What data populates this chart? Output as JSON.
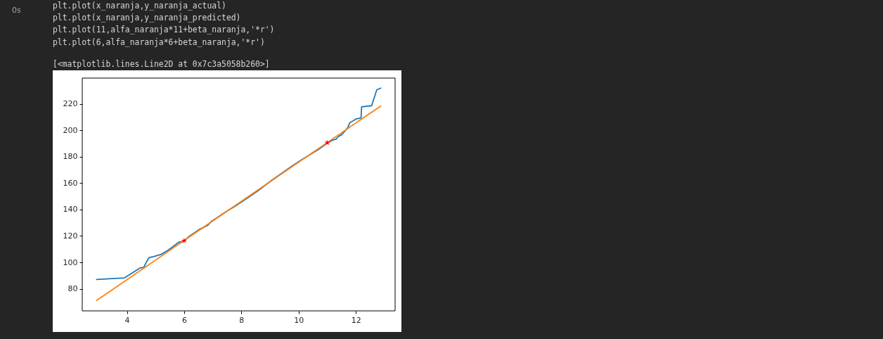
{
  "chart_data": {
    "type": "line",
    "annotations": [
      "0s",
      "plt.plot(x_naranja,y_naranja_actual)",
      "plt.plot(x_naranja,y_naranja_predicted)",
      "plt.plot(11,alfa_naranja*11+beta_naranja,'*r')",
      "plt.plot(6,alfa_naranja*6+beta_naranja,'*r')",
      "[<matplotlib.lines.Line2D at 0x7c3a5058b260>]"
    ],
    "xlim": [
      2.44,
      13.37
    ],
    "ylim": [
      63.3,
      239.5
    ],
    "xticks": [
      4,
      6,
      8,
      10,
      12
    ],
    "yticks": [
      80,
      100,
      120,
      140,
      160,
      180,
      200,
      220
    ],
    "grid": false,
    "line_style": "solid",
    "series": [
      {
        "color": "#1f77b4",
        "x": [
          2.94,
          3.92,
          4.46,
          4.59,
          4.69,
          4.77,
          4.93,
          5.2,
          5.42,
          5.65,
          5.81,
          5.9,
          6.0,
          6.18,
          6.51,
          6.83,
          6.96,
          7.16,
          7.49,
          7.77,
          8.26,
          8.59,
          9.07,
          9.72,
          10.05,
          10.37,
          10.7,
          11.0,
          11.19,
          11.31,
          11.39,
          11.51,
          11.63,
          11.72,
          11.79,
          11.9,
          12.0,
          12.18,
          12.2,
          12.55,
          12.73,
          12.87
        ],
        "values": [
          87.1,
          88.3,
          95.8,
          96.2,
          100.6,
          103.5,
          104.4,
          106.1,
          109.0,
          112.5,
          115.3,
          115.6,
          116.3,
          119.7,
          124.7,
          128.2,
          131.2,
          134.0,
          138.8,
          142.3,
          149.4,
          154.3,
          162.3,
          172.2,
          177.0,
          181.2,
          185.6,
          190.3,
          192.6,
          193.2,
          195.3,
          196.7,
          199.7,
          202.0,
          205.8,
          207.0,
          208.5,
          209.4,
          217.7,
          218.6,
          230.6,
          231.9
        ]
      },
      {
        "color": "#ff7f0e",
        "x": [
          2.94,
          12.87
        ],
        "values": [
          71.2,
          218.4
        ]
      },
      {
        "type": "scatter",
        "marker": "star",
        "color": "#ff0000",
        "x": [
          11,
          6
        ],
        "values": [
          190.6,
          116.4
        ]
      }
    ]
  }
}
